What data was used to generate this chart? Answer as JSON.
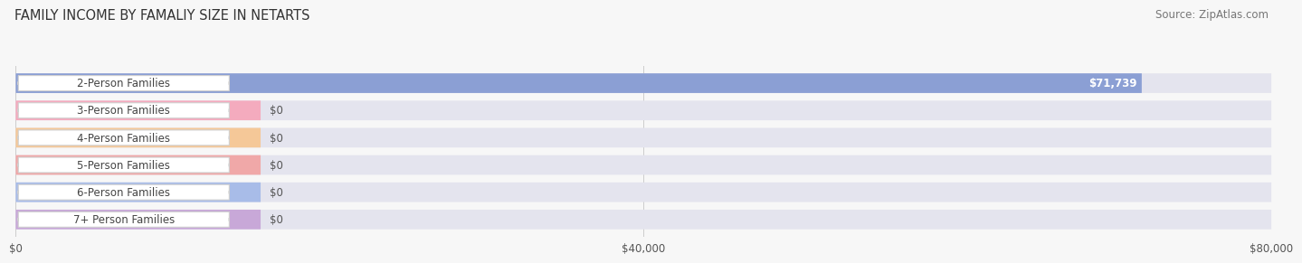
{
  "title": "FAMILY INCOME BY FAMALIY SIZE IN NETARTS",
  "source": "Source: ZipAtlas.com",
  "categories": [
    "2-Person Families",
    "3-Person Families",
    "4-Person Families",
    "5-Person Families",
    "6-Person Families",
    "7+ Person Families"
  ],
  "values": [
    71739,
    0,
    0,
    0,
    0,
    0
  ],
  "bar_colors": [
    "#8b9fd4",
    "#f4abbe",
    "#f5c898",
    "#f0a8a8",
    "#a8bce8",
    "#c8a8d8"
  ],
  "value_labels": [
    "$71,739",
    "$0",
    "$0",
    "$0",
    "$0",
    "$0"
  ],
  "xlim": [
    0,
    80000
  ],
  "xticks": [
    0,
    40000,
    80000
  ],
  "xticklabels": [
    "$0",
    "$40,000",
    "$80,000"
  ],
  "background_color": "#f7f7f7",
  "bar_bg_color": "#e4e4ee",
  "title_fontsize": 10.5,
  "source_fontsize": 8.5,
  "label_fontsize": 8.5,
  "value_fontsize": 8.5
}
